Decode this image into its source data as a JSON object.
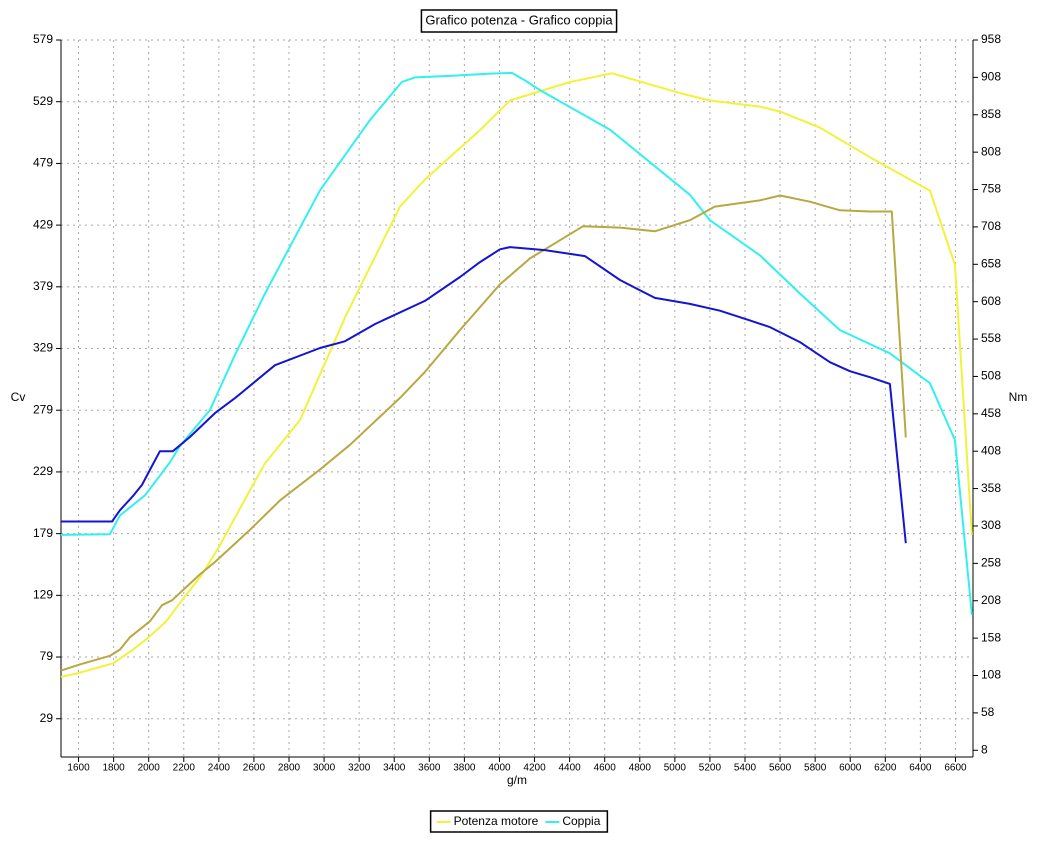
{
  "chart_data": {
    "type": "line",
    "title": "Grafico potenza - Grafico coppia",
    "x_label": "g/m",
    "y_label": "Cv",
    "y2_label": "Nm",
    "xlim": [
      1500,
      6700
    ],
    "xticks": [
      1600,
      1800,
      2000,
      2200,
      2400,
      2600,
      2800,
      3000,
      3200,
      3400,
      3600,
      3800,
      4000,
      4200,
      4400,
      4600,
      4800,
      5000,
      5200,
      5400,
      5600,
      5800,
      6000,
      6200,
      6400,
      6600
    ],
    "ylim": [
      -2,
      579
    ],
    "yticks": [
      29,
      79,
      129,
      179,
      229,
      279,
      329,
      379,
      429,
      479,
      529,
      579
    ],
    "y2lim": [
      -1,
      958
    ],
    "y2ticks": [
      8,
      58,
      108,
      158,
      208,
      258,
      308,
      358,
      408,
      458,
      508,
      558,
      608,
      658,
      708,
      758,
      808,
      858,
      908,
      958
    ],
    "grid": true,
    "legend": "bottom",
    "series": [
      {
        "name": "Potenza motore",
        "color": "#f2f23a",
        "axis": "y",
        "x": [
          1500,
          1600,
          1800,
          1900,
          2000,
          2100,
          2200,
          2300,
          2400,
          2577,
          2663,
          2863,
          3119,
          3433,
          3575,
          3889,
          4060,
          4402,
          4641,
          5029,
          5200,
          5485,
          5600,
          5827,
          6112,
          6454,
          6597,
          6694
        ],
        "values": [
          63,
          66,
          74,
          84,
          95,
          108,
          127,
          145,
          168,
          214,
          236,
          271,
          354,
          444,
          466,
          506,
          530,
          545,
          552,
          536,
          530,
          525,
          521,
          508,
          484,
          457,
          397,
          178
        ]
      },
      {
        "name": "Coppia",
        "color": "#33f0f0",
        "axis": "y2",
        "x": [
          1500,
          1779,
          1836,
          1979,
          2121,
          2178,
          2349,
          2492,
          2663,
          2977,
          3262,
          3444,
          3518,
          3718,
          3946,
          4071,
          4145,
          4231,
          4630,
          5086,
          5200,
          5485,
          5713,
          5941,
          6226,
          6454,
          6597,
          6694
        ],
        "values": [
          296,
          297,
          322,
          349,
          393,
          415,
          463,
          537,
          619,
          757,
          851,
          902,
          908,
          910,
          913,
          914,
          904,
          891,
          838,
          751,
          717,
          670,
          619,
          570,
          539,
          499,
          423,
          189
        ]
      },
      {
        "color": "#b8a842",
        "axis": "y",
        "x": [
          1500,
          1608,
          1779,
          1836,
          1893,
          2007,
          2076,
          2133,
          2292,
          2378,
          2577,
          2749,
          2977,
          3148,
          3433,
          3575,
          3775,
          4003,
          4174,
          4476,
          4687,
          4886,
          5086,
          5228,
          5485,
          5600,
          5770,
          5941,
          6112,
          6237,
          6317
        ],
        "values": [
          68,
          73,
          80,
          85,
          95,
          108,
          121,
          125,
          146,
          156,
          182,
          206,
          231,
          251,
          289,
          310,
          344,
          381,
          402,
          428,
          427,
          424,
          433,
          444,
          449,
          453,
          448,
          441,
          440,
          440,
          257
        ]
      },
      {
        "color": "#1414d2",
        "axis": "y2",
        "x": [
          1500,
          1791,
          1836,
          1910,
          1962,
          2007,
          2064,
          2138,
          2235,
          2378,
          2492,
          2720,
          2977,
          3119,
          3290,
          3575,
          3775,
          3889,
          4003,
          4060,
          4259,
          4487,
          4687,
          4886,
          5086,
          5257,
          5428,
          5542,
          5713,
          5884,
          5998,
          6112,
          6226,
          6317
        ],
        "values": [
          314,
          314,
          329,
          348,
          363,
          383,
          408,
          408,
          427,
          459,
          479,
          523,
          546,
          555,
          578,
          609,
          641,
          661,
          678,
          681,
          677,
          669,
          637,
          613,
          605,
          596,
          583,
          574,
          554,
          527,
          515,
          507,
          498,
          285
        ]
      }
    ]
  }
}
